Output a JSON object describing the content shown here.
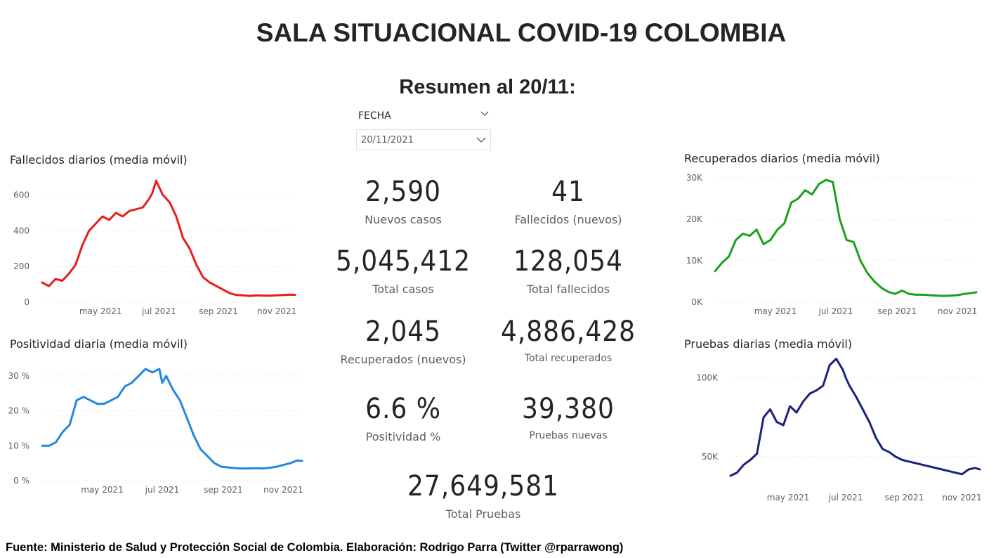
{
  "page": {
    "title": "SALA SITUACIONAL COVID-19 COLOMBIA",
    "subtitle": "Resumen al 20/11:",
    "footer": "Fuente: Ministerio de Salud y Protección Social de Colombia. Elaboración: Rodrigo Parra (Twitter @rparrawong)"
  },
  "slicer": {
    "label": "FECHA",
    "value": "20/11/2021",
    "icon": "chevron-down-icon"
  },
  "kpis": {
    "nuevos_casos": {
      "value": "2,590",
      "label": "Nuevos casos"
    },
    "fallecidos_nuevos": {
      "value": "41",
      "label": "Fallecidos (nuevos)"
    },
    "total_casos": {
      "value": "5,045,412",
      "label": "Total casos"
    },
    "total_fallecidos": {
      "value": "128,054",
      "label": "Total fallecidos"
    },
    "recuperados_nuevos": {
      "value": "2,045",
      "label": "Recuperados (nuevos)"
    },
    "total_recuperados": {
      "value": "4,886,428",
      "label": "Total recuperados"
    },
    "positividad": {
      "value": "6.6 %",
      "label": "Positividad %"
    },
    "pruebas_nuevas": {
      "value": "39,380",
      "label": "Pruebas nuevas"
    },
    "total_pruebas": {
      "value": "27,649,581",
      "label": "Total Pruebas"
    }
  },
  "chart_data": [
    {
      "id": "fallecidos",
      "type": "line",
      "title": "Fallecidos diarios (media móvil)",
      "color": "#e81c1c",
      "xlim": [
        "2021-03-01",
        "2021-11-20"
      ],
      "ylim": [
        0,
        700
      ],
      "x_ticks": [
        {
          "date": "2021-05-01",
          "label": "may 2021"
        },
        {
          "date": "2021-07-01",
          "label": "jul 2021"
        },
        {
          "date": "2021-09-01",
          "label": "sep 2021"
        },
        {
          "date": "2021-11-01",
          "label": "nov 2021"
        }
      ],
      "y_ticks": [
        {
          "value": 0,
          "label": "0"
        },
        {
          "value": 200,
          "label": "200"
        },
        {
          "value": 400,
          "label": "400"
        },
        {
          "value": 600,
          "label": "600"
        }
      ],
      "x": [
        "2021-03-01",
        "2021-03-08",
        "2021-03-15",
        "2021-03-22",
        "2021-03-29",
        "2021-04-05",
        "2021-04-12",
        "2021-04-19",
        "2021-04-26",
        "2021-05-03",
        "2021-05-10",
        "2021-05-17",
        "2021-05-24",
        "2021-05-31",
        "2021-06-07",
        "2021-06-14",
        "2021-06-21",
        "2021-06-24",
        "2021-06-28",
        "2021-07-05",
        "2021-07-12",
        "2021-07-19",
        "2021-07-26",
        "2021-08-02",
        "2021-08-09",
        "2021-08-16",
        "2021-08-23",
        "2021-08-30",
        "2021-09-06",
        "2021-09-13",
        "2021-09-20",
        "2021-09-27",
        "2021-10-04",
        "2021-10-11",
        "2021-10-18",
        "2021-10-25",
        "2021-11-01",
        "2021-11-08",
        "2021-11-15",
        "2021-11-20"
      ],
      "y": [
        110,
        90,
        130,
        120,
        160,
        210,
        320,
        400,
        440,
        480,
        460,
        500,
        480,
        510,
        520,
        530,
        580,
        610,
        680,
        600,
        560,
        480,
        360,
        300,
        210,
        140,
        110,
        90,
        70,
        50,
        40,
        38,
        35,
        38,
        37,
        36,
        38,
        40,
        42,
        41
      ]
    },
    {
      "id": "positividad",
      "type": "line",
      "title": "Positividad diaria (media móvil)",
      "color": "#1e88e5",
      "xlim": [
        "2021-03-01",
        "2021-11-20"
      ],
      "ylim": [
        0,
        35
      ],
      "x_ticks": [
        {
          "date": "2021-05-01",
          "label": "may 2021"
        },
        {
          "date": "2021-07-01",
          "label": "jul 2021"
        },
        {
          "date": "2021-09-01",
          "label": "sep 2021"
        },
        {
          "date": "2021-11-01",
          "label": "nov 2021"
        }
      ],
      "y_ticks": [
        {
          "value": 0,
          "label": "0 %"
        },
        {
          "value": 10,
          "label": "10 %"
        },
        {
          "value": 20,
          "label": "20 %"
        },
        {
          "value": 30,
          "label": "30 %"
        }
      ],
      "x": [
        "2021-03-01",
        "2021-03-08",
        "2021-03-15",
        "2021-03-22",
        "2021-03-29",
        "2021-04-05",
        "2021-04-12",
        "2021-04-19",
        "2021-04-26",
        "2021-05-03",
        "2021-05-10",
        "2021-05-17",
        "2021-05-24",
        "2021-05-31",
        "2021-06-07",
        "2021-06-14",
        "2021-06-21",
        "2021-06-28",
        "2021-07-01",
        "2021-07-05",
        "2021-07-12",
        "2021-07-19",
        "2021-07-26",
        "2021-08-02",
        "2021-08-09",
        "2021-08-16",
        "2021-08-23",
        "2021-08-30",
        "2021-09-06",
        "2021-09-13",
        "2021-09-20",
        "2021-09-27",
        "2021-10-04",
        "2021-10-11",
        "2021-10-18",
        "2021-10-25",
        "2021-11-01",
        "2021-11-08",
        "2021-11-15",
        "2021-11-20"
      ],
      "y": [
        10,
        10,
        11,
        14,
        16,
        23,
        24,
        23,
        22,
        22,
        23,
        24,
        27,
        28,
        30,
        32,
        31,
        32,
        28,
        30,
        26,
        23,
        18,
        13,
        9,
        7,
        5,
        4,
        3.8,
        3.6,
        3.5,
        3.5,
        3.6,
        3.5,
        3.7,
        4,
        4.5,
        5,
        5.8,
        5.7
      ]
    },
    {
      "id": "recuperados",
      "type": "line",
      "title": "Recuperados diarios (media móvil)",
      "color": "#1aa11a",
      "xlim": [
        "2021-03-01",
        "2021-11-20"
      ],
      "ylim": [
        0,
        30000
      ],
      "x_ticks": [
        {
          "date": "2021-05-01",
          "label": "may 2021"
        },
        {
          "date": "2021-07-01",
          "label": "jul 2021"
        },
        {
          "date": "2021-09-01",
          "label": "sep 2021"
        },
        {
          "date": "2021-11-01",
          "label": "nov 2021"
        }
      ],
      "y_ticks": [
        {
          "value": 0,
          "label": "0K"
        },
        {
          "value": 10000,
          "label": "10K"
        },
        {
          "value": 20000,
          "label": "20K"
        },
        {
          "value": 30000,
          "label": "30K"
        }
      ],
      "x": [
        "2021-03-01",
        "2021-03-08",
        "2021-03-15",
        "2021-03-22",
        "2021-03-29",
        "2021-04-05",
        "2021-04-12",
        "2021-04-19",
        "2021-04-26",
        "2021-05-03",
        "2021-05-10",
        "2021-05-17",
        "2021-05-24",
        "2021-05-31",
        "2021-06-07",
        "2021-06-14",
        "2021-06-21",
        "2021-06-28",
        "2021-07-05",
        "2021-07-12",
        "2021-07-19",
        "2021-07-26",
        "2021-08-02",
        "2021-08-09",
        "2021-08-16",
        "2021-08-23",
        "2021-08-30",
        "2021-09-06",
        "2021-09-13",
        "2021-09-20",
        "2021-09-27",
        "2021-10-04",
        "2021-10-11",
        "2021-10-18",
        "2021-10-25",
        "2021-11-01",
        "2021-11-08",
        "2021-11-15",
        "2021-11-20"
      ],
      "y": [
        7500,
        9500,
        11000,
        15000,
        16500,
        16000,
        17500,
        14000,
        15000,
        17500,
        19000,
        24000,
        25000,
        27000,
        26000,
        28500,
        29500,
        29000,
        20000,
        15000,
        14500,
        10000,
        7000,
        5000,
        3500,
        2500,
        2000,
        2800,
        2000,
        1800,
        1800,
        1700,
        1600,
        1500,
        1600,
        1700,
        2000,
        2200,
        2400
      ]
    },
    {
      "id": "pruebas",
      "type": "line",
      "title": "Pruebas diarias (media móvil)",
      "color": "#1a237e",
      "xlim": [
        "2021-03-01",
        "2021-11-20"
      ],
      "ylim": [
        30000,
        110000
      ],
      "x_ticks": [
        {
          "date": "2021-05-01",
          "label": "may 2021"
        },
        {
          "date": "2021-07-01",
          "label": "jul 2021"
        },
        {
          "date": "2021-09-01",
          "label": "sep 2021"
        },
        {
          "date": "2021-11-01",
          "label": "nov 2021"
        }
      ],
      "y_ticks": [
        {
          "value": 50000,
          "label": "50K"
        },
        {
          "value": 100000,
          "label": "100K"
        }
      ],
      "x": [
        "2021-03-01",
        "2021-03-08",
        "2021-03-15",
        "2021-03-22",
        "2021-03-29",
        "2021-04-05",
        "2021-04-12",
        "2021-04-19",
        "2021-04-26",
        "2021-05-03",
        "2021-05-10",
        "2021-05-17",
        "2021-05-24",
        "2021-05-31",
        "2021-06-07",
        "2021-06-14",
        "2021-06-21",
        "2021-06-28",
        "2021-07-01",
        "2021-07-05",
        "2021-07-12",
        "2021-07-19",
        "2021-07-26",
        "2021-08-02",
        "2021-08-09",
        "2021-08-16",
        "2021-08-23",
        "2021-08-30",
        "2021-09-06",
        "2021-09-13",
        "2021-09-20",
        "2021-09-27",
        "2021-10-04",
        "2021-10-11",
        "2021-10-18",
        "2021-10-25",
        "2021-11-01",
        "2021-11-08",
        "2021-11-15",
        "2021-11-20"
      ],
      "y": [
        38000,
        40000,
        45000,
        48000,
        52000,
        75000,
        80000,
        72000,
        70000,
        82000,
        78000,
        85000,
        90000,
        92000,
        95000,
        108000,
        112000,
        105000,
        100000,
        95000,
        88000,
        80000,
        72000,
        62000,
        55000,
        53000,
        50000,
        48000,
        47000,
        46000,
        45000,
        44000,
        43000,
        42000,
        41000,
        40000,
        39000,
        42000,
        43000,
        42000
      ]
    }
  ]
}
